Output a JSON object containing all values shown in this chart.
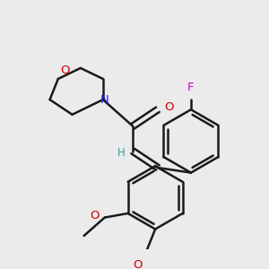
{
  "background_color": "#ebebeb",
  "bond_color": "#1a1a1a",
  "bond_width": 1.8,
  "figsize": [
    3.0,
    3.0
  ],
  "dpi": 100,
  "morph_O_label": {
    "text": "O",
    "color": "#cc0000",
    "fontsize": 9.5
  },
  "morph_N_label": {
    "text": "N",
    "color": "#1a1aff",
    "fontsize": 9.5
  },
  "carbonyl_O_label": {
    "text": "O",
    "color": "#cc0000",
    "fontsize": 9.5
  },
  "H_label": {
    "text": "H",
    "color": "#3a9a9a",
    "fontsize": 8.5
  },
  "F_label": {
    "text": "F",
    "color": "#cc00cc",
    "fontsize": 9.5
  },
  "methoxy_O1_label": {
    "text": "O",
    "color": "#cc0000",
    "fontsize": 9.5
  },
  "methoxy_O2_label": {
    "text": "O",
    "color": "#cc0000",
    "fontsize": 9.5
  }
}
